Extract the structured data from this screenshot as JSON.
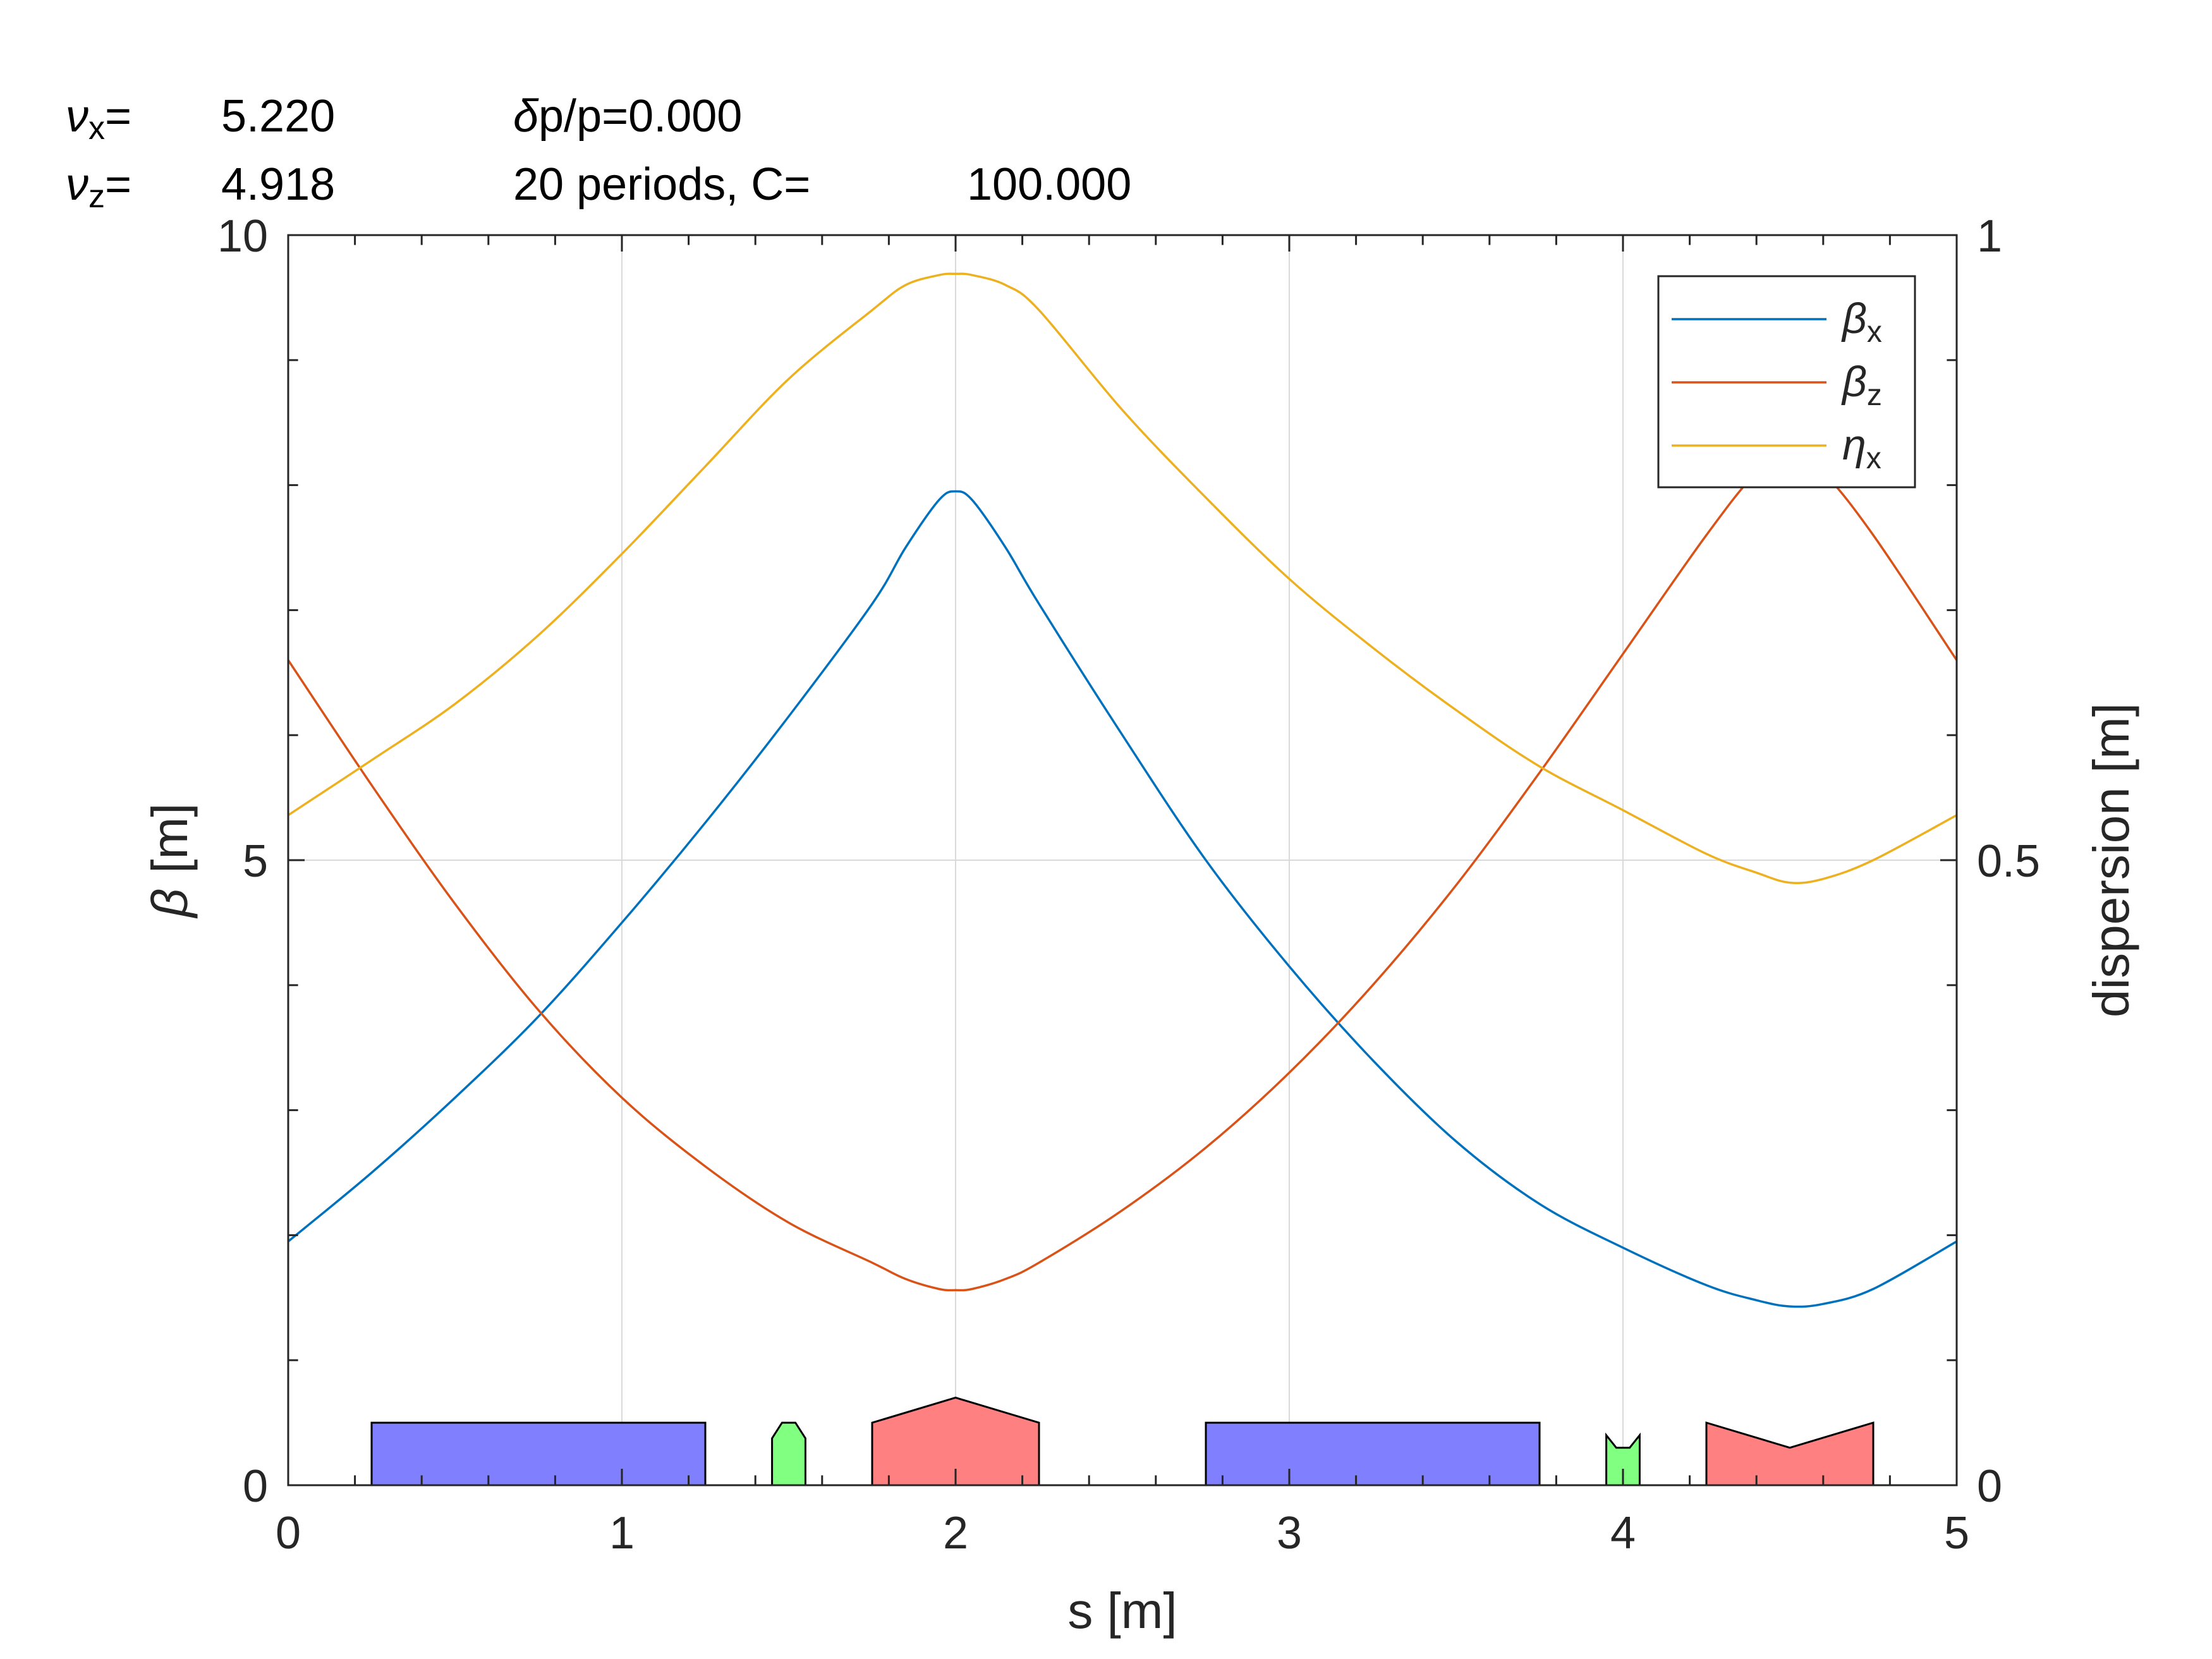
{
  "header": {
    "nux_label": "ν",
    "nux_sub": "x",
    "nux_eq": "=",
    "nux_value": "5.220",
    "nuz_label": "ν",
    "nuz_sub": "z",
    "nuz_eq": "=",
    "nuz_value": "4.918",
    "dpp_delta": "δ",
    "dpp_text": "p/p=0.000",
    "periods_text": "20  periods,  C=",
    "circumference": "100.000"
  },
  "chart_data": {
    "type": "line",
    "xlabel": "s [m]",
    "ylabel_symbol": "β",
    "ylabel_unit": "[m]",
    "y2label": "dispersion [m]",
    "xlim": [
      0,
      5
    ],
    "ylim": [
      0,
      10
    ],
    "y2lim": [
      0,
      1
    ],
    "xticks": [
      "0",
      "1",
      "2",
      "3",
      "4",
      "5"
    ],
    "yticks": [
      "0",
      "5",
      "10"
    ],
    "y2ticks": [
      "0",
      "0.5",
      "1"
    ],
    "grid": true,
    "legend_position": "top-right",
    "series": [
      {
        "name": "β",
        "sub": "x",
        "axis": "left",
        "color": "#0072BD",
        "x": [
          0,
          0.25,
          0.5,
          0.75,
          1.0,
          1.25,
          1.5,
          1.75,
          1.85,
          1.95,
          2.0,
          2.05,
          2.15,
          2.25,
          2.5,
          2.75,
          3.0,
          3.25,
          3.5,
          3.75,
          4.0,
          4.25,
          4.4,
          4.5,
          4.6,
          4.75,
          5.0
        ],
        "y": [
          1.95,
          2.5,
          3.1,
          3.75,
          4.5,
          5.3,
          6.15,
          7.05,
          7.5,
          7.88,
          7.95,
          7.88,
          7.5,
          7.05,
          6.0,
          5.0,
          4.15,
          3.4,
          2.75,
          2.25,
          1.9,
          1.6,
          1.48,
          1.43,
          1.45,
          1.57,
          1.95
        ]
      },
      {
        "name": "β",
        "sub": "z",
        "axis": "left",
        "color": "#D95319",
        "x": [
          0,
          0.25,
          0.5,
          0.75,
          1.0,
          1.25,
          1.5,
          1.75,
          1.85,
          1.95,
          2.0,
          2.05,
          2.15,
          2.25,
          2.5,
          2.75,
          3.0,
          3.25,
          3.5,
          3.75,
          4.0,
          4.25,
          4.4,
          4.5,
          4.6,
          4.75,
          5.0
        ],
        "y": [
          6.6,
          5.6,
          4.65,
          3.8,
          3.1,
          2.55,
          2.1,
          1.78,
          1.65,
          1.57,
          1.56,
          1.57,
          1.65,
          1.78,
          2.2,
          2.7,
          3.3,
          4.0,
          4.8,
          5.7,
          6.65,
          7.6,
          8.1,
          8.25,
          8.1,
          7.6,
          6.6
        ]
      },
      {
        "name": "η",
        "sub": "x",
        "axis": "right",
        "color": "#EDB120",
        "x": [
          0,
          0.25,
          0.5,
          0.75,
          1.0,
          1.25,
          1.5,
          1.75,
          1.85,
          1.95,
          2.0,
          2.05,
          2.15,
          2.25,
          2.5,
          2.75,
          3.0,
          3.25,
          3.5,
          3.75,
          4.0,
          4.25,
          4.4,
          4.5,
          4.6,
          4.75,
          5.0
        ],
        "y": [
          0.536,
          0.58,
          0.625,
          0.68,
          0.745,
          0.815,
          0.885,
          0.94,
          0.96,
          0.968,
          0.969,
          0.968,
          0.96,
          0.94,
          0.86,
          0.79,
          0.725,
          0.67,
          0.62,
          0.575,
          0.54,
          0.505,
          0.49,
          0.482,
          0.485,
          0.5,
          0.536
        ]
      }
    ],
    "lattice": [
      {
        "kind": "rect",
        "s0": 0.25,
        "s1": 1.25,
        "h": 0.5,
        "color": "#8080FF"
      },
      {
        "kind": "pentup",
        "s0": 1.45,
        "s1": 1.55,
        "h": 0.5,
        "peak": 0.5,
        "color": "#80FF80"
      },
      {
        "kind": "roofup",
        "s0": 1.75,
        "s1": 2.25,
        "h": 0.5,
        "peak": 0.7,
        "color": "#FF8080"
      },
      {
        "kind": "rect",
        "s0": 2.75,
        "s1": 3.75,
        "h": 0.5,
        "color": "#8080FF"
      },
      {
        "kind": "notch",
        "s0": 3.95,
        "s1": 4.05,
        "h": 0.4,
        "dip": 0.3,
        "color": "#80FF80"
      },
      {
        "kind": "roofdn",
        "s0": 4.25,
        "s1": 4.75,
        "h": 0.5,
        "dip": 0.3,
        "color": "#FF8080"
      }
    ]
  }
}
